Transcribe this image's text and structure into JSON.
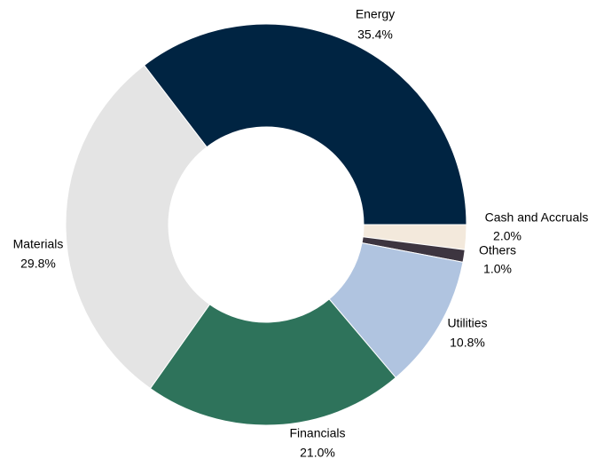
{
  "chart_data": {
    "type": "donut",
    "categories": [
      "Energy",
      "Cash and Accruals",
      "Others",
      "Utilities",
      "Financials",
      "Materials"
    ],
    "values": [
      35.4,
      2.0,
      1.0,
      10.8,
      21.0,
      29.8
    ],
    "value_labels": [
      "35.4%",
      "2.0%",
      "1.0%",
      "10.8%",
      "21.0%",
      "29.8%"
    ],
    "colors": [
      "#002442",
      "#f3e9dc",
      "#3d3540",
      "#b0c4e0",
      "#2e735b",
      "#e4e4e4"
    ]
  }
}
